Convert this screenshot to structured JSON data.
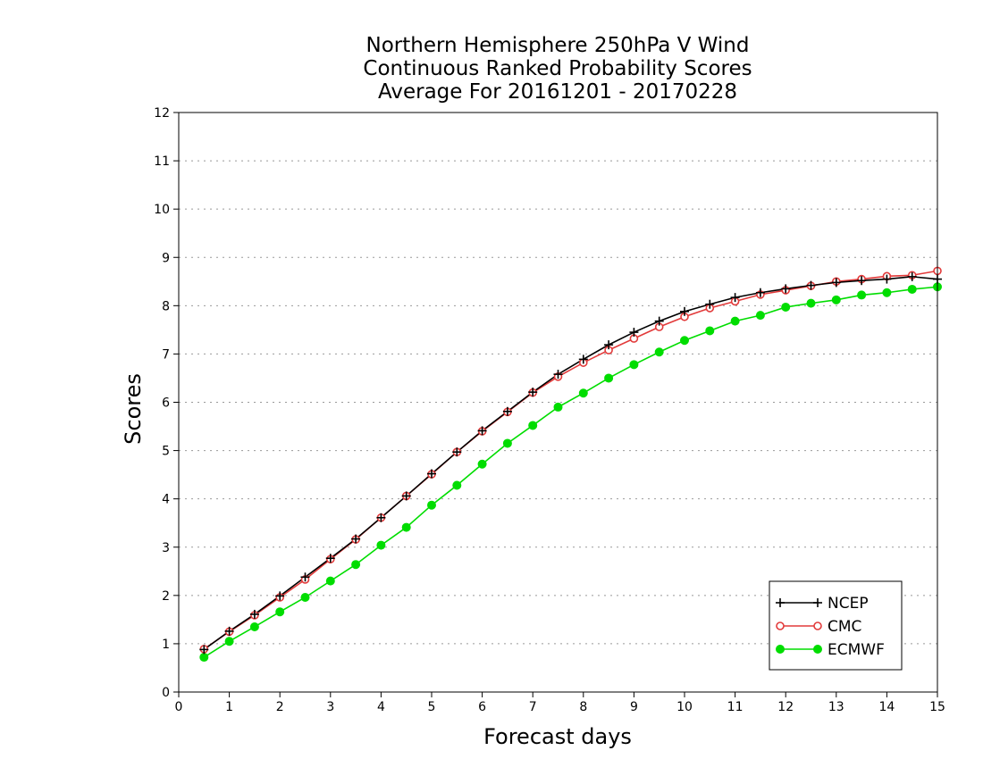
{
  "chart_data": {
    "type": "line",
    "title_lines": [
      "Northern Hemisphere 250hPa V Wind",
      "Continuous Ranked Probability Scores",
      "Average For 20161201 - 20170228"
    ],
    "xlabel": "Forecast days",
    "ylabel": "Scores",
    "xlim": [
      0,
      15
    ],
    "ylim": [
      0,
      12
    ],
    "xticks": [
      0,
      1,
      2,
      3,
      4,
      5,
      6,
      7,
      8,
      9,
      10,
      11,
      12,
      13,
      14,
      15
    ],
    "yticks": [
      0,
      1,
      2,
      3,
      4,
      5,
      6,
      7,
      8,
      9,
      10,
      11,
      12
    ],
    "grid": "horizontal-dotted",
    "legend_position": "bottom-right",
    "x": [
      0.5,
      1,
      1.5,
      2,
      2.5,
      3,
      3.5,
      4,
      4.5,
      5,
      5.5,
      6,
      6.5,
      7,
      7.5,
      8,
      8.5,
      9,
      9.5,
      10,
      10.5,
      11,
      11.5,
      12,
      12.5,
      13,
      13.5,
      14,
      14.5,
      15
    ],
    "series": [
      {
        "name": "NCEP",
        "color": "#000000",
        "marker": "plus",
        "values": [
          0.88,
          1.26,
          1.61,
          1.99,
          2.38,
          2.77,
          3.17,
          3.61,
          4.06,
          4.52,
          4.97,
          5.41,
          5.81,
          6.21,
          6.58,
          6.89,
          7.19,
          7.45,
          7.68,
          7.88,
          8.03,
          8.17,
          8.27,
          8.35,
          8.42,
          8.48,
          8.52,
          8.55,
          8.6,
          8.55
        ]
      },
      {
        "name": "CMC",
        "color": "#e23a3a",
        "marker": "open-circle",
        "values": [
          0.89,
          1.25,
          1.59,
          1.96,
          2.33,
          2.75,
          3.16,
          3.61,
          4.06,
          4.51,
          4.97,
          5.4,
          5.8,
          6.2,
          6.53,
          6.82,
          7.08,
          7.32,
          7.56,
          7.77,
          7.95,
          8.09,
          8.23,
          8.32,
          8.41,
          8.5,
          8.55,
          8.61,
          8.63,
          8.72
        ]
      },
      {
        "name": "ECMWF",
        "color": "#00dd00",
        "marker": "filled-circle",
        "values": [
          0.72,
          1.05,
          1.35,
          1.66,
          1.96,
          2.3,
          2.64,
          3.04,
          3.41,
          3.87,
          4.28,
          4.72,
          5.15,
          5.52,
          5.9,
          6.19,
          6.5,
          6.78,
          7.04,
          7.28,
          7.48,
          7.68,
          7.8,
          7.97,
          8.05,
          8.12,
          8.22,
          8.27,
          8.34,
          8.39
        ]
      }
    ]
  }
}
